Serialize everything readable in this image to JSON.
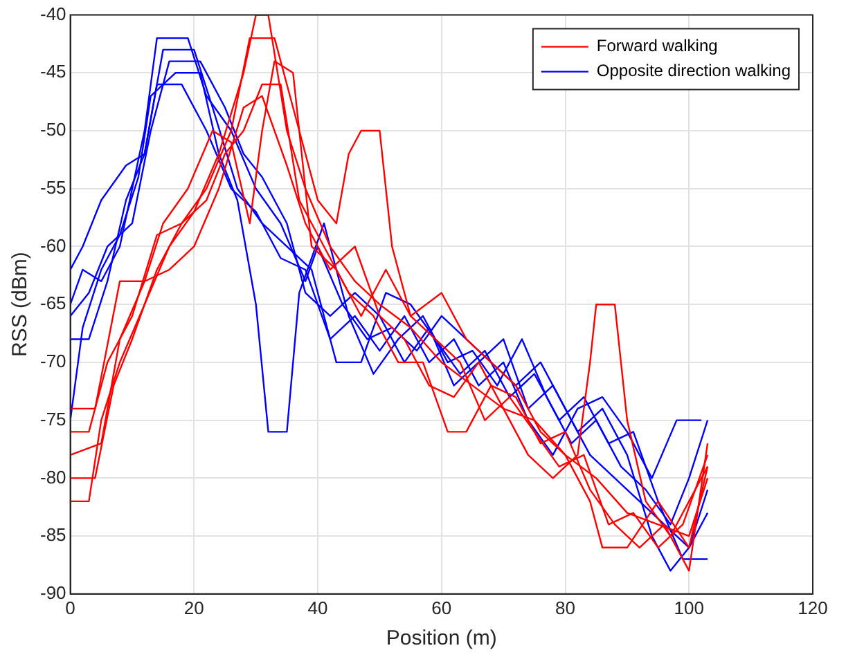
{
  "chart_data": {
    "type": "line",
    "xlabel": "Position (m)",
    "ylabel": "RSS (dBm)",
    "xlim": [
      0,
      120
    ],
    "xticks": [
      0,
      20,
      40,
      60,
      80,
      100,
      120
    ],
    "ylim": [
      -90,
      -40
    ],
    "yticks": [
      -90,
      -85,
      -80,
      -75,
      -70,
      -65,
      -60,
      -55,
      -50,
      -45,
      -40
    ],
    "grid": true,
    "legend": "top right",
    "marker": "none",
    "line_style": "solid",
    "series": [
      {
        "name": "Forward walking",
        "color": "#ff0000",
        "x": [
          0,
          3,
          5,
          8,
          12,
          16,
          20,
          24,
          28,
          30,
          32,
          35,
          38,
          42,
          46,
          50,
          55,
          60,
          65,
          70,
          75,
          80,
          85,
          90,
          95,
          100,
          103
        ],
        "values": [
          -82,
          -82,
          -75,
          -70,
          -65,
          -60,
          -57,
          -52,
          -45,
          -40,
          -40,
          -50,
          -55,
          -60,
          -63,
          -65,
          -67,
          -70,
          -72,
          -74,
          -75,
          -78,
          -80,
          -83,
          -84,
          -85,
          -80
        ]
      },
      {
        "color": "#ff0000",
        "x": [
          0,
          4,
          7,
          10,
          14,
          18,
          22,
          26,
          29,
          33,
          36,
          40,
          43,
          45,
          47,
          50,
          52,
          55,
          60,
          64,
          68,
          72,
          76,
          80,
          84,
          86,
          90,
          95,
          100,
          103
        ],
        "values": [
          -80,
          -80,
          -72,
          -68,
          -62,
          -58,
          -55,
          -50,
          -42,
          -42,
          -48,
          -56,
          -58,
          -52,
          -50,
          -50,
          -60,
          -66,
          -64,
          -68,
          -70,
          -72,
          -76,
          -78,
          -82,
          -86,
          -86,
          -82,
          -86,
          -79
        ]
      },
      {
        "color": "#ff0000",
        "x": [
          0,
          5,
          8,
          12,
          16,
          20,
          24,
          28,
          31,
          35,
          38,
          42,
          46,
          50,
          54,
          58,
          62,
          66,
          70,
          74,
          78,
          82,
          84,
          85,
          88,
          90,
          93,
          97,
          100,
          103
        ],
        "values": [
          -78,
          -77,
          -68,
          -63,
          -62,
          -60,
          -55,
          -48,
          -47,
          -53,
          -58,
          -62,
          -60,
          -66,
          -68,
          -72,
          -73,
          -70,
          -74,
          -78,
          -80,
          -78,
          -70,
          -65,
          -65,
          -75,
          -82,
          -85,
          -82,
          -79
        ]
      },
      {
        "color": "#ff0000",
        "x": [
          0,
          3,
          6,
          10,
          14,
          18,
          22,
          25,
          28,
          31,
          34,
          37,
          41,
          45,
          49,
          53,
          57,
          61,
          64,
          68,
          72,
          76,
          80,
          84,
          88,
          92,
          96,
          100,
          103
        ],
        "values": [
          -76,
          -76,
          -70,
          -66,
          -59,
          -58,
          -56,
          -52,
          -50,
          -46,
          -46,
          -56,
          -60,
          -64,
          -66,
          -70,
          -70,
          -76,
          -76,
          -72,
          -73,
          -77,
          -76,
          -81,
          -84,
          -86,
          -84,
          -88,
          -77
        ]
      },
      {
        "color": "#ff0000",
        "x": [
          0,
          4,
          8,
          12,
          15,
          19,
          23,
          26,
          29,
          31,
          33,
          36,
          39,
          43,
          47,
          51,
          55,
          59,
          63,
          67,
          71,
          75,
          79,
          83,
          87,
          91,
          95,
          99,
          103
        ],
        "values": [
          -74,
          -74,
          -63,
          -63,
          -58,
          -55,
          -50,
          -51,
          -58,
          -50,
          -44,
          -45,
          -60,
          -62,
          -66,
          -62,
          -66,
          -68,
          -70,
          -75,
          -73,
          -76,
          -79,
          -78,
          -84,
          -83,
          -86,
          -84,
          -78
        ]
      },
      {
        "name": "Opposite direction walking",
        "color": "#0000ff",
        "x": [
          0,
          2,
          5,
          8,
          10,
          12,
          14,
          19,
          22,
          26,
          30,
          34,
          38,
          40,
          44,
          48,
          52,
          56,
          60,
          64,
          68,
          72,
          76,
          80,
          84,
          88,
          92,
          96,
          100,
          103
        ],
        "values": [
          -65,
          -62,
          -63,
          -60,
          -55,
          -50,
          -42,
          -42,
          -47,
          -50,
          -55,
          -58,
          -63,
          -60,
          -65,
          -68,
          -67,
          -69,
          -66,
          -68,
          -70,
          -72,
          -70,
          -74,
          -78,
          -80,
          -82,
          -84,
          -86,
          -83
        ]
      },
      {
        "color": "#0000ff",
        "x": [
          0,
          2,
          5,
          8,
          11,
          13,
          17,
          21,
          24,
          27,
          30,
          32,
          35,
          37,
          41,
          45,
          49,
          53,
          57,
          61,
          65,
          69,
          73,
          77,
          81,
          85,
          89,
          93,
          97,
          100,
          103
        ],
        "values": [
          -75,
          -67,
          -62,
          -59,
          -54,
          -47,
          -45,
          -45,
          -52,
          -56,
          -65,
          -76,
          -76,
          -64,
          -58,
          -66,
          -71,
          -68,
          -66,
          -70,
          -69,
          -72,
          -68,
          -73,
          -77,
          -75,
          -79,
          -81,
          -84,
          -80,
          -75
        ]
      },
      {
        "color": "#0000ff",
        "x": [
          0,
          3,
          6,
          9,
          12,
          15,
          20,
          23,
          27,
          31,
          35,
          39,
          43,
          47,
          51,
          55,
          59,
          63,
          67,
          71,
          75,
          79,
          83,
          87,
          91,
          95,
          99,
          103
        ],
        "values": [
          -68,
          -68,
          -63,
          -56,
          -52,
          -43,
          -43,
          -48,
          -55,
          -58,
          -60,
          -62,
          -70,
          -70,
          -64,
          -65,
          -68,
          -71,
          -69,
          -73,
          -71,
          -75,
          -73,
          -77,
          -76,
          -82,
          -87,
          -87
        ]
      },
      {
        "color": "#0000ff",
        "x": [
          0,
          3,
          6,
          10,
          13,
          16,
          21,
          25,
          28,
          31,
          35,
          38,
          42,
          46,
          50,
          54,
          58,
          62,
          66,
          70,
          74,
          78,
          82,
          86,
          90,
          94,
          97,
          100,
          103
        ],
        "values": [
          -66,
          -64,
          -60,
          -58,
          -50,
          -44,
          -44,
          -48,
          -52,
          -54,
          -58,
          -64,
          -66,
          -64,
          -66,
          -70,
          -67,
          -72,
          -70,
          -68,
          -74,
          -72,
          -76,
          -74,
          -78,
          -85,
          -88,
          -86,
          -81
        ]
      },
      {
        "color": "#0000ff",
        "x": [
          0,
          2,
          5,
          9,
          12,
          14,
          18,
          22,
          26,
          30,
          34,
          38,
          42,
          46,
          50,
          54,
          58,
          62,
          66,
          70,
          74,
          78,
          82,
          86,
          90,
          94,
          98,
          102
        ],
        "values": [
          -62,
          -60,
          -56,
          -53,
          -52,
          -46,
          -46,
          -50,
          -55,
          -57,
          -61,
          -62,
          -68,
          -66,
          -69,
          -66,
          -70,
          -68,
          -72,
          -70,
          -75,
          -78,
          -74,
          -73,
          -76,
          -80,
          -75,
          -75
        ]
      }
    ]
  }
}
